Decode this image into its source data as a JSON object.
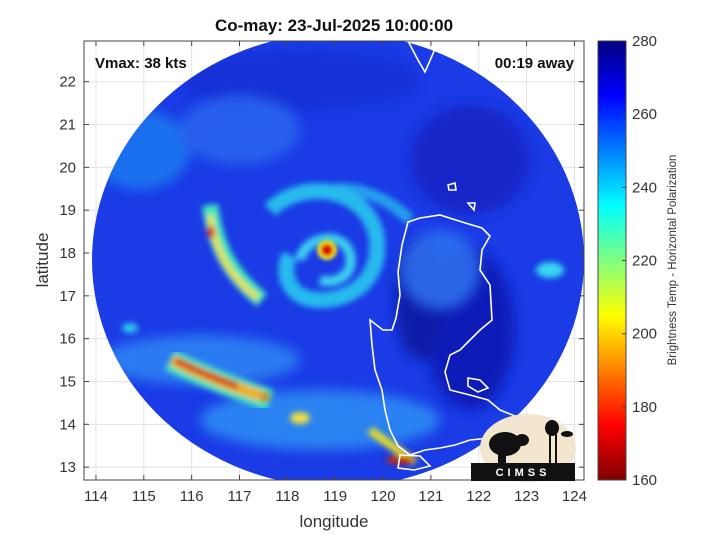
{
  "title": "Co-may: 23-Jul-2025 10:00:00",
  "vmax_label": "Vmax: 38 kts",
  "time_away_label": "00:19 away",
  "xaxis": {
    "label": "longitude",
    "ticks": [
      114,
      115,
      116,
      117,
      118,
      119,
      120,
      121,
      122,
      123,
      124
    ],
    "range": [
      113.75,
      124.2
    ]
  },
  "yaxis": {
    "label": "latitude",
    "ticks": [
      13,
      14,
      15,
      16,
      17,
      18,
      19,
      20,
      21,
      22
    ],
    "range": [
      12.7,
      22.95
    ]
  },
  "colorbar": {
    "label": "Brightness Temp - Horizontal Polarization",
    "ticks": [
      160,
      180,
      200,
      220,
      240,
      260,
      280
    ],
    "range": [
      160,
      280
    ],
    "colormap": "jet"
  },
  "swath": {
    "center": [
      119.05,
      17.55
    ],
    "radius_deg": 5.15
  },
  "storm_center": {
    "lon": 118.9,
    "lat": 17.85
  },
  "logo_text": "CIMSS",
  "colors": {
    "background_low": "#1430e8",
    "cold_core": "#c80000",
    "land_outline": "#ffffff"
  }
}
